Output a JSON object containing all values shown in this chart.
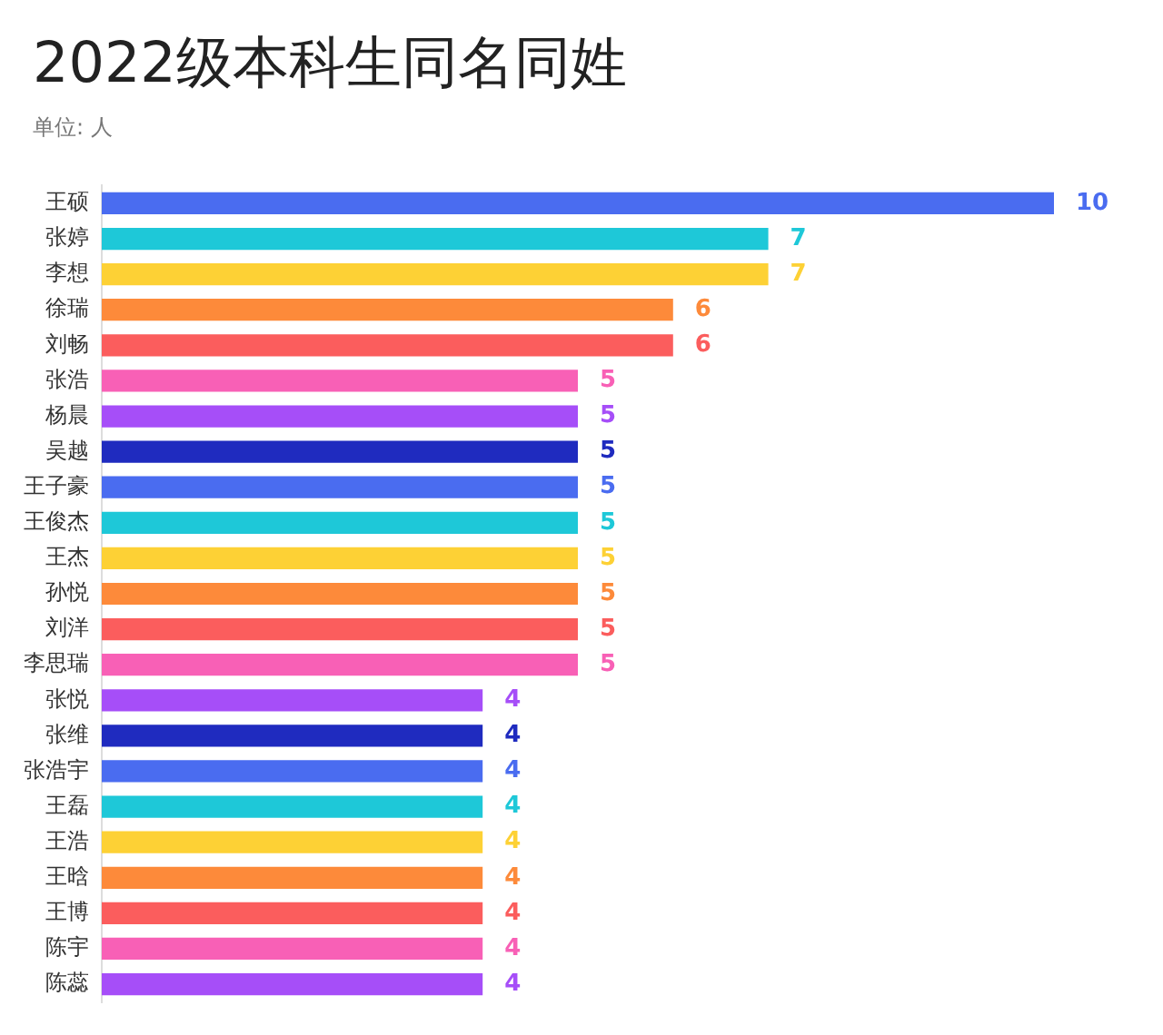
{
  "chart_data": {
    "type": "bar",
    "orientation": "horizontal",
    "title": "2022级本科生同名同姓",
    "subtitle": "单位: 人",
    "categories": [
      "王硕",
      "张婷",
      "李想",
      "徐瑞",
      "刘畅",
      "张浩",
      "杨晨",
      "吴越",
      "王子豪",
      "王俊杰",
      "王杰",
      "孙悦",
      "刘洋",
      "李思瑞",
      "张悦",
      "张维",
      "张浩宇",
      "王磊",
      "王浩",
      "王晗",
      "王博",
      "陈宇",
      "陈蕊"
    ],
    "values": [
      10,
      7,
      7,
      6,
      6,
      5,
      5,
      5,
      5,
      5,
      5,
      5,
      5,
      5,
      4,
      4,
      4,
      4,
      4,
      4,
      4,
      4,
      4
    ],
    "colors": [
      "#4a6cf0",
      "#1ec8d8",
      "#fdd135",
      "#fd8a3a",
      "#fb5d5d",
      "#f860b6",
      "#a64ef8",
      "#1f2bbf",
      "#4a6cf0",
      "#1ec8d8",
      "#fdd135",
      "#fd8a3a",
      "#fb5d5d",
      "#f860b6",
      "#a64ef8",
      "#1f2bbf",
      "#4a6cf0",
      "#1ec8d8",
      "#fdd135",
      "#fd8a3a",
      "#fb5d5d",
      "#f860b6",
      "#a64ef8"
    ],
    "data_labels": true,
    "grid": false,
    "legend": false,
    "tick_labels": "y"
  }
}
